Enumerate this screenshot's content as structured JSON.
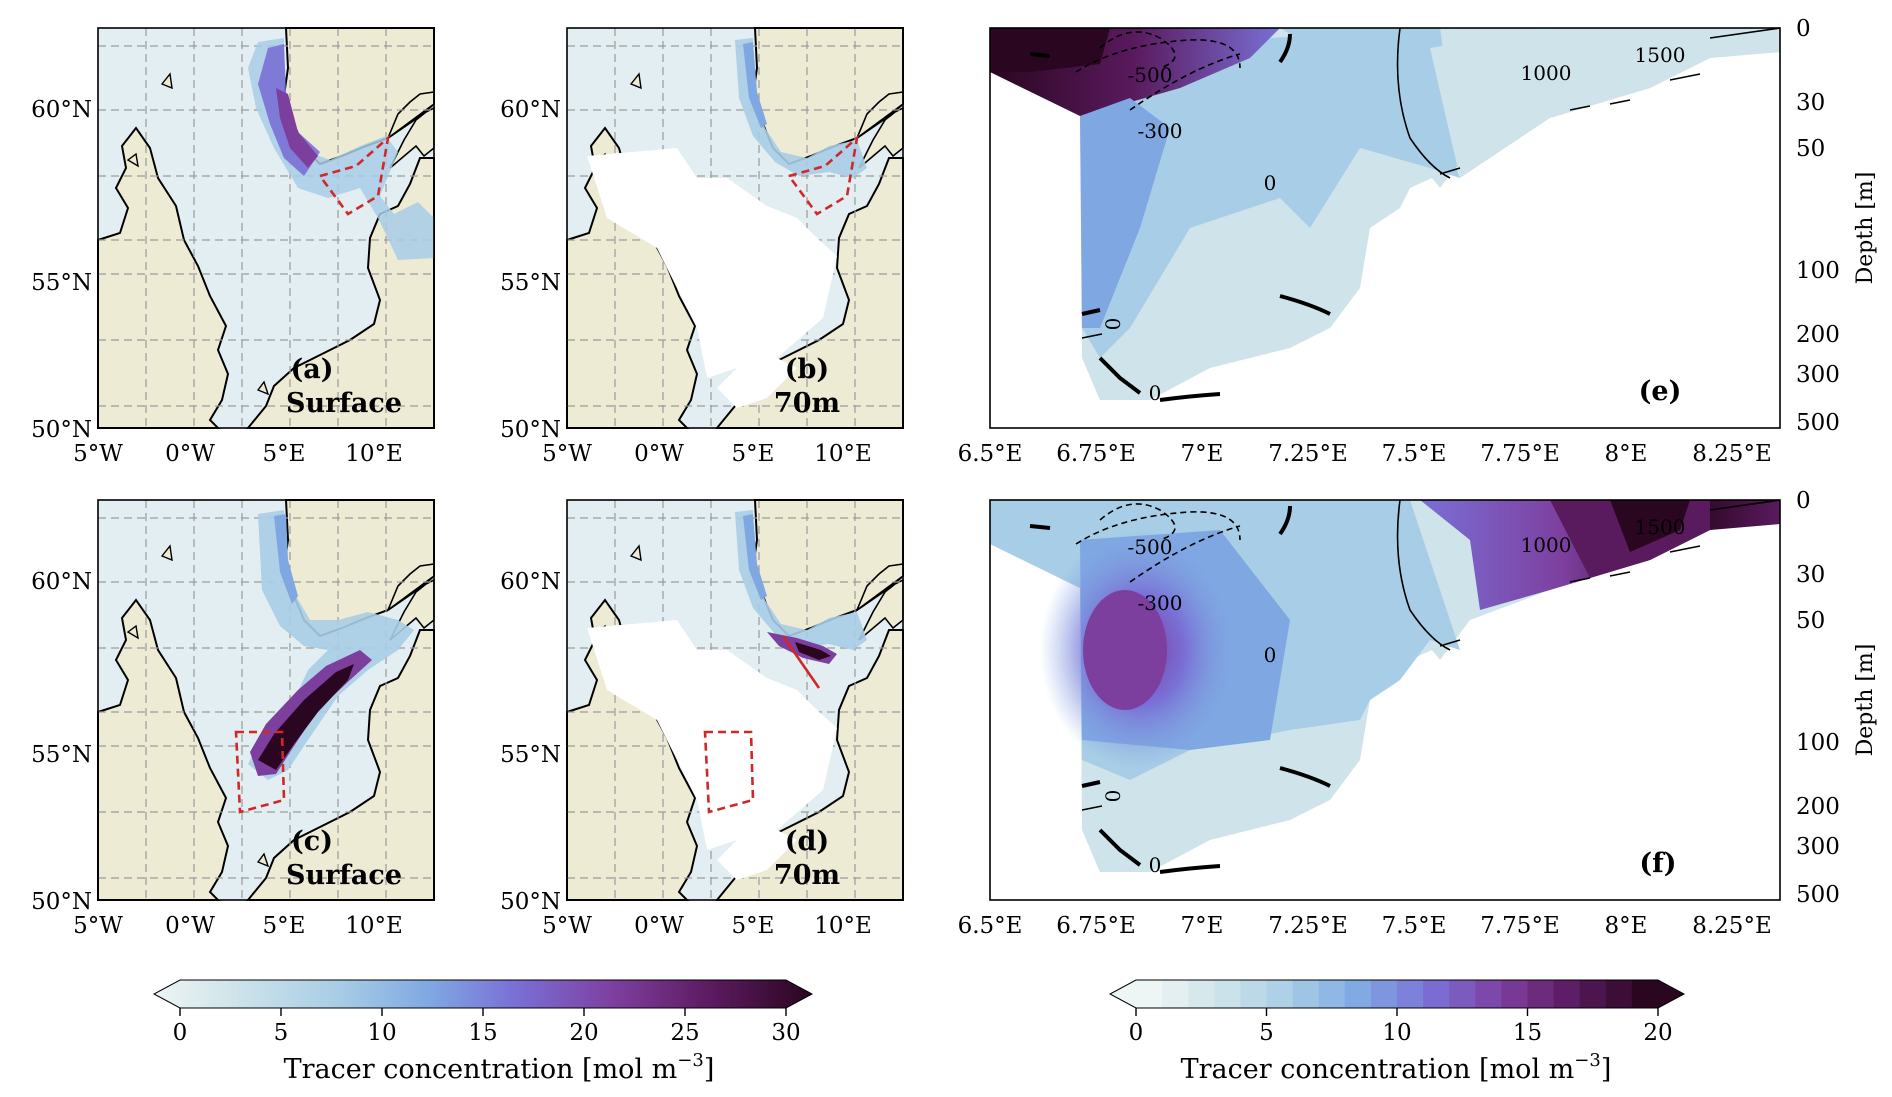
{
  "map_panels": [
    {
      "tag": "(a)",
      "label": "Surface"
    },
    {
      "tag": "(b)",
      "label": "70m"
    },
    {
      "tag": "(c)",
      "label": "Surface"
    },
    {
      "tag": "(d)",
      "label": "70m"
    }
  ],
  "section_panels": [
    {
      "tag": "(e)"
    },
    {
      "tag": "(f)"
    }
  ],
  "map_axes": {
    "lat_ticks": [
      "60°N",
      "55°N",
      "50°N"
    ],
    "lon_ticks": [
      "5°W",
      "0°W",
      "5°E",
      "10°E"
    ]
  },
  "section_axes": {
    "x_ticks": [
      "6.5°E",
      "6.75°E",
      "7°E",
      "7.25°E",
      "7.5°E",
      "7.75°E",
      "8°E",
      "8.25°E"
    ],
    "depth_ticks": [
      "0",
      "30",
      "50",
      "100",
      "200",
      "300",
      "500"
    ],
    "depth_label": "Depth [m]"
  },
  "contour_labels": [
    "-500",
    "-300",
    "0",
    "0",
    "0",
    "1000",
    "1500"
  ],
  "colorbars": [
    {
      "ticks": [
        "0",
        "5",
        "10",
        "15",
        "20",
        "25",
        "30"
      ],
      "values": [
        0,
        5,
        10,
        15,
        20,
        25,
        30
      ],
      "label": "Tracer concentration [mol m",
      "sup": "−3",
      "close": "]",
      "style": "continuous"
    },
    {
      "ticks": [
        "0",
        "5",
        "10",
        "15",
        "20"
      ],
      "values": [
        0,
        5,
        10,
        15,
        20
      ],
      "label": "Tracer concentration [mol m",
      "sup": "−3",
      "close": "]",
      "style": "discrete"
    }
  ],
  "colors": {
    "sea": "#e2eef1",
    "land": "#eeebd5",
    "grid": "#9a9a9a",
    "box": "#d0282a",
    "cmap": [
      "#eef5f5",
      "#cfe4ea",
      "#a8cde6",
      "#7fa8e2",
      "#7a6fd6",
      "#7d3f9e",
      "#5a1a5e",
      "#2a0620"
    ]
  }
}
